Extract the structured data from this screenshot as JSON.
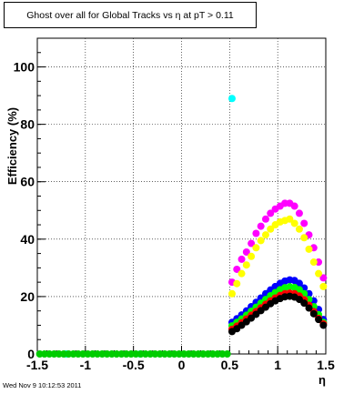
{
  "chart_data": {
    "type": "scatter",
    "title": "Ghost over all for Global Tracks vs η at pT > 0.11",
    "xlabel": "η",
    "ylabel": "Efficiency (%)",
    "xlim": [
      -1.5,
      1.5
    ],
    "ylim": [
      0,
      110
    ],
    "x_ticks": [
      "-1.5",
      "-1",
      "-0.5",
      "0",
      "0.5",
      "1",
      "1.5"
    ],
    "y_ticks": [
      "0",
      "20",
      "40",
      "60",
      "80",
      "100"
    ],
    "grid": true,
    "legend": "none",
    "series": [
      {
        "color": "#00ffff",
        "x": [
          -1.2,
          -0.43,
          0.525
        ],
        "y": [
          0,
          0,
          89
        ]
      },
      {
        "color": "#00cc00",
        "x": [
          -1.475,
          -1.425,
          -1.375,
          -1.325,
          -1.275,
          -1.225,
          -1.175,
          -1.125,
          -1.075,
          -1.025,
          -0.975,
          -0.925,
          -0.875,
          -0.825,
          -0.775,
          -0.725,
          -0.675,
          -0.625,
          -0.575,
          -0.525,
          -0.475,
          -0.425,
          -0.375,
          -0.325,
          -0.275,
          -0.225,
          -0.175,
          -0.125,
          -0.075,
          -0.025,
          0.025,
          0.075,
          0.125,
          0.175,
          0.225,
          0.275,
          0.325,
          0.375,
          0.425,
          0.475
        ],
        "y": [
          0,
          0,
          0,
          0,
          0,
          0,
          0,
          0,
          0,
          0,
          0,
          0,
          0,
          0,
          0,
          0,
          0,
          0,
          0,
          0,
          0,
          0,
          0,
          0,
          0,
          0,
          0,
          0,
          0,
          0,
          0,
          0,
          0,
          0,
          0,
          0,
          0,
          0,
          0,
          0
        ]
      },
      {
        "color": "#ff00ff",
        "x": [
          0.525,
          0.575,
          0.625,
          0.675,
          0.725,
          0.775,
          0.825,
          0.875,
          0.925,
          0.975,
          1.025,
          1.075,
          1.125,
          1.175,
          1.225,
          1.275,
          1.325,
          1.375,
          1.425,
          1.475
        ],
        "y": [
          25,
          29.5,
          33,
          35.5,
          38.5,
          42,
          44.5,
          47,
          49,
          50.5,
          51.5,
          52.5,
          52.5,
          51.5,
          49,
          45.5,
          41.5,
          37,
          32,
          26.5
        ]
      },
      {
        "color": "#ffff00",
        "x": [
          0.525,
          0.575,
          0.625,
          0.675,
          0.725,
          0.775,
          0.825,
          0.875,
          0.925,
          0.975,
          1.025,
          1.075,
          1.125,
          1.175,
          1.225,
          1.275,
          1.325,
          1.375,
          1.425,
          1.475
        ],
        "y": [
          21,
          24.5,
          28,
          31,
          34,
          37,
          39.5,
          41.5,
          43.5,
          45,
          46,
          46.5,
          47,
          45.5,
          43.5,
          40.5,
          36.5,
          32,
          28,
          23.5
        ]
      },
      {
        "color": "#0000ff",
        "x": [
          0.525,
          0.575,
          0.625,
          0.675,
          0.725,
          0.775,
          0.825,
          0.875,
          0.925,
          0.975,
          1.025,
          1.075,
          1.125,
          1.175,
          1.225,
          1.275,
          1.325,
          1.375,
          1.425,
          1.475
        ],
        "y": [
          11,
          12.3,
          13.6,
          15,
          16.5,
          18,
          19.5,
          21,
          22.3,
          23.5,
          24.6,
          25.4,
          25.8,
          25.6,
          24.6,
          23,
          21,
          18.5,
          15.5,
          12
        ]
      },
      {
        "color": "#00ff00",
        "x": [
          0.525,
          0.575,
          0.625,
          0.675,
          0.725,
          0.775,
          0.825,
          0.875,
          0.925,
          0.975,
          1.025,
          1.075,
          1.125,
          1.175,
          1.225,
          1.275,
          1.325,
          1.375,
          1.425,
          1.475
        ],
        "y": [
          9.8,
          11,
          12.2,
          13.5,
          14.9,
          16.3,
          17.7,
          19,
          20.3,
          21.4,
          22.4,
          23.1,
          23.4,
          23.2,
          22.4,
          21,
          19,
          16.5,
          13.7,
          11
        ]
      },
      {
        "color": "#ff0000",
        "x": [
          0.525,
          0.575,
          0.625,
          0.675,
          0.725,
          0.775,
          0.825,
          0.875,
          0.925,
          0.975,
          1.025,
          1.075,
          1.125,
          1.175,
          1.225,
          1.275,
          1.325,
          1.375,
          1.425,
          1.475
        ],
        "y": [
          8.6,
          9.7,
          10.9,
          12.2,
          13.5,
          14.8,
          16.1,
          17.3,
          18.5,
          19.5,
          20.4,
          21,
          21.2,
          21,
          20.2,
          18.9,
          17,
          14.8,
          12.4,
          10.5
        ]
      },
      {
        "color": "#000000",
        "x": [
          0.525,
          0.575,
          0.625,
          0.675,
          0.725,
          0.775,
          0.825,
          0.875,
          0.925,
          0.975,
          1.025,
          1.075,
          1.125,
          1.175,
          1.225,
          1.275,
          1.325,
          1.375,
          1.425,
          1.475
        ],
        "y": [
          7.8,
          8.8,
          10,
          11.2,
          12.5,
          13.8,
          15.1,
          16.3,
          17.5,
          18.5,
          19.3,
          19.9,
          20.1,
          19.8,
          19,
          17.7,
          16,
          14,
          12,
          10
        ]
      }
    ]
  },
  "timestamp": "Wed Nov  9 10:12:53 2011"
}
